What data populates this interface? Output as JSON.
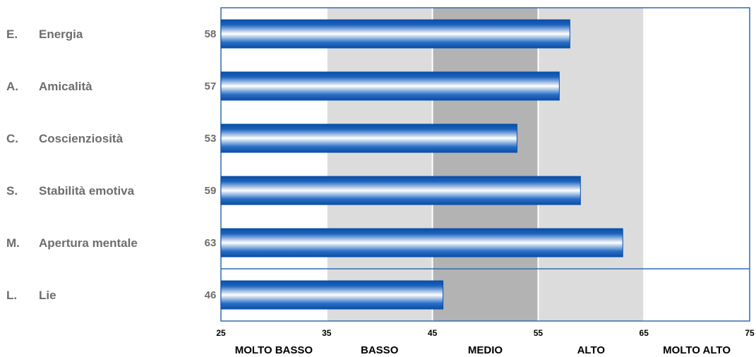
{
  "chart_data": {
    "type": "bar",
    "orientation": "horizontal",
    "categories": [
      {
        "code": "E.",
        "name": "Energia",
        "value": 58
      },
      {
        "code": "A.",
        "name": "Amicalità",
        "value": 57
      },
      {
        "code": "C.",
        "name": "Coscienziosità",
        "value": 53
      },
      {
        "code": "S.",
        "name": "Stabilità emotiva",
        "value": 59
      },
      {
        "code": "M.",
        "name": "Apertura mentale",
        "value": 63
      },
      {
        "code": "L.",
        "name": "Lie",
        "value": 46
      }
    ],
    "xlim": [
      25,
      75
    ],
    "x_ticks": [
      "25",
      "35",
      "45",
      "55",
      "65",
      "75"
    ],
    "bands": [
      {
        "label": "MOLTO BASSO",
        "from": 25,
        "to": 35,
        "color": "#ffffff"
      },
      {
        "label": "BASSO",
        "from": 35,
        "to": 45,
        "color": "#dcdcdc"
      },
      {
        "label": "MEDIO",
        "from": 45,
        "to": 55,
        "color": "#b3b3b3"
      },
      {
        "label": "ALTO",
        "from": 55,
        "to": 65,
        "color": "#dcdcdc"
      },
      {
        "label": "MOLTO ALTO",
        "from": 65,
        "to": 75,
        "color": "#ffffff"
      }
    ],
    "separator_after_index": 4,
    "colors": {
      "bar_dark": "#0a4ea6",
      "bar_light": "#ffffff",
      "frame": "#2f6db0",
      "label_gray": "#6d6d6d"
    }
  }
}
